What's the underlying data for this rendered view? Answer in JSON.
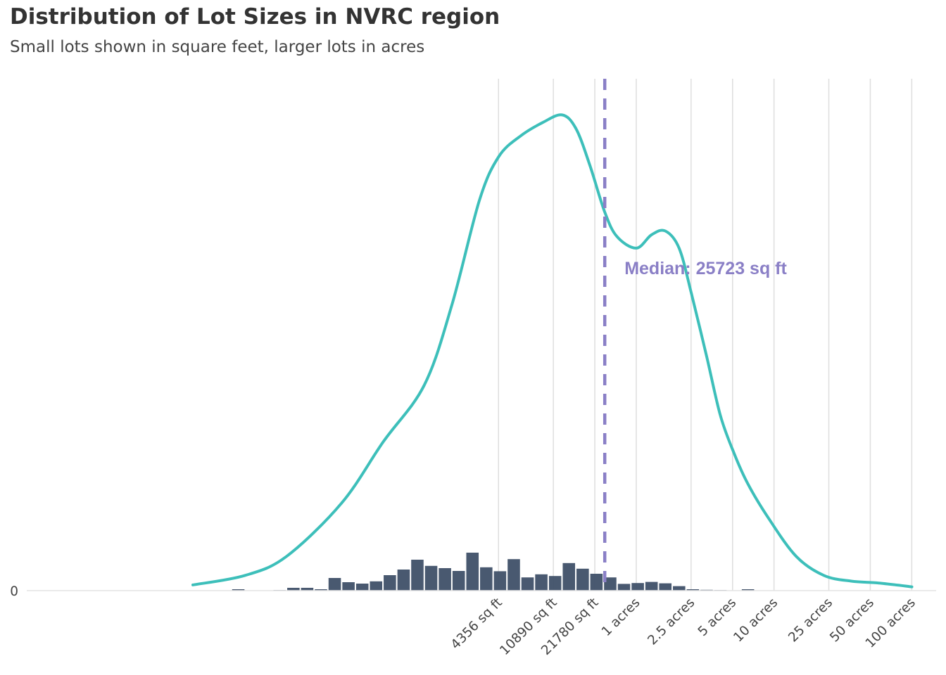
{
  "chart_data": {
    "type": "histogram+density",
    "title": "Distribution  of Lot Sizes in NVRC region",
    "subtitle": "Small lots shown in square feet, larger lots in acres",
    "x_scale": "log",
    "x_unit": "sq ft",
    "xlim": [
      2,
      4600000
    ],
    "y_ticks": [
      {
        "value": 0,
        "label": "0"
      }
    ],
    "x_ticks": [
      {
        "value": 4356,
        "label": "4356 sq ft"
      },
      {
        "value": 10890,
        "label": "10890 sq ft"
      },
      {
        "value": 21780,
        "label": "21780 sq ft"
      },
      {
        "value": 43560,
        "label": "1 acres"
      },
      {
        "value": 108900,
        "label": "2.5 acres"
      },
      {
        "value": 217800,
        "label": "5 acres"
      },
      {
        "value": 435600,
        "label": "10 acres"
      },
      {
        "value": 1089000,
        "label": "25 acres"
      },
      {
        "value": 2178000,
        "label": "50 acres"
      },
      {
        "value": 4356000,
        "label": "100 acres"
      }
    ],
    "grid": {
      "vertical": true,
      "horizontal": false
    },
    "histogram": {
      "color": "#3f5068",
      "bin_edges_log10": [
        1.7,
        1.8,
        1.9,
        2.0,
        2.1,
        2.2,
        2.3,
        2.4,
        2.5,
        2.6,
        2.7,
        2.8,
        2.9,
        3.0,
        3.1,
        3.2,
        3.3,
        3.4,
        3.5,
        3.6,
        3.7,
        3.8,
        3.9,
        4.0,
        4.1,
        4.2,
        4.3,
        4.4,
        4.5,
        4.6,
        4.7,
        4.8,
        4.9,
        5.0,
        5.1,
        5.2,
        5.3,
        5.4,
        5.5,
        5.6,
        5.7,
        5.8,
        5.9,
        6.0,
        6.1,
        6.2,
        6.3,
        6.4,
        6.5,
        6.6,
        6.7
      ],
      "density": [
        0.05,
        0,
        0,
        0.02,
        0.1,
        0.1,
        0.05,
        0.45,
        0.3,
        0.25,
        0.33,
        0.55,
        0.75,
        1.1,
        0.88,
        0.8,
        0.7,
        1.35,
        0.83,
        0.69,
        1.12,
        0.47,
        0.58,
        0.52,
        0.98,
        0.78,
        0.6,
        0.47,
        0.24,
        0.27,
        0.31,
        0.26,
        0.16,
        0.05,
        0.03,
        0.02,
        0,
        0.05,
        0,
        0,
        0,
        0,
        0,
        0,
        0,
        0,
        0,
        0,
        0,
        0
      ]
    },
    "density_curve": {
      "color": "#3dbfba",
      "x_log10": [
        1.42,
        1.8,
        2.1,
        2.5,
        2.8,
        3.1,
        3.3,
        3.5,
        3.64,
        3.8,
        3.96,
        4.1,
        4.2,
        4.3,
        4.41,
        4.5,
        4.64,
        4.75,
        4.85,
        4.95,
        5.04,
        5.15,
        5.25,
        5.35,
        5.45,
        5.6,
        5.8,
        6.0,
        6.2,
        6.4,
        6.64
      ],
      "y": [
        0.3,
        0.8,
        1.8,
        4.6,
        7.8,
        10.8,
        15.0,
        20.5,
        22.8,
        23.9,
        24.6,
        25.0,
        24.3,
        22.4,
        19.9,
        18.6,
        18.0,
        18.7,
        18.9,
        18.0,
        15.6,
        12.3,
        9.2,
        7.2,
        5.6,
        3.8,
        1.8,
        0.8,
        0.5,
        0.4,
        0.2
      ],
      "ylim": [
        0,
        26.9
      ]
    },
    "median_line": {
      "value": 25723,
      "label": "Median: 25723 sq ft",
      "color": "#8a7fc6",
      "style": "dashed"
    }
  }
}
